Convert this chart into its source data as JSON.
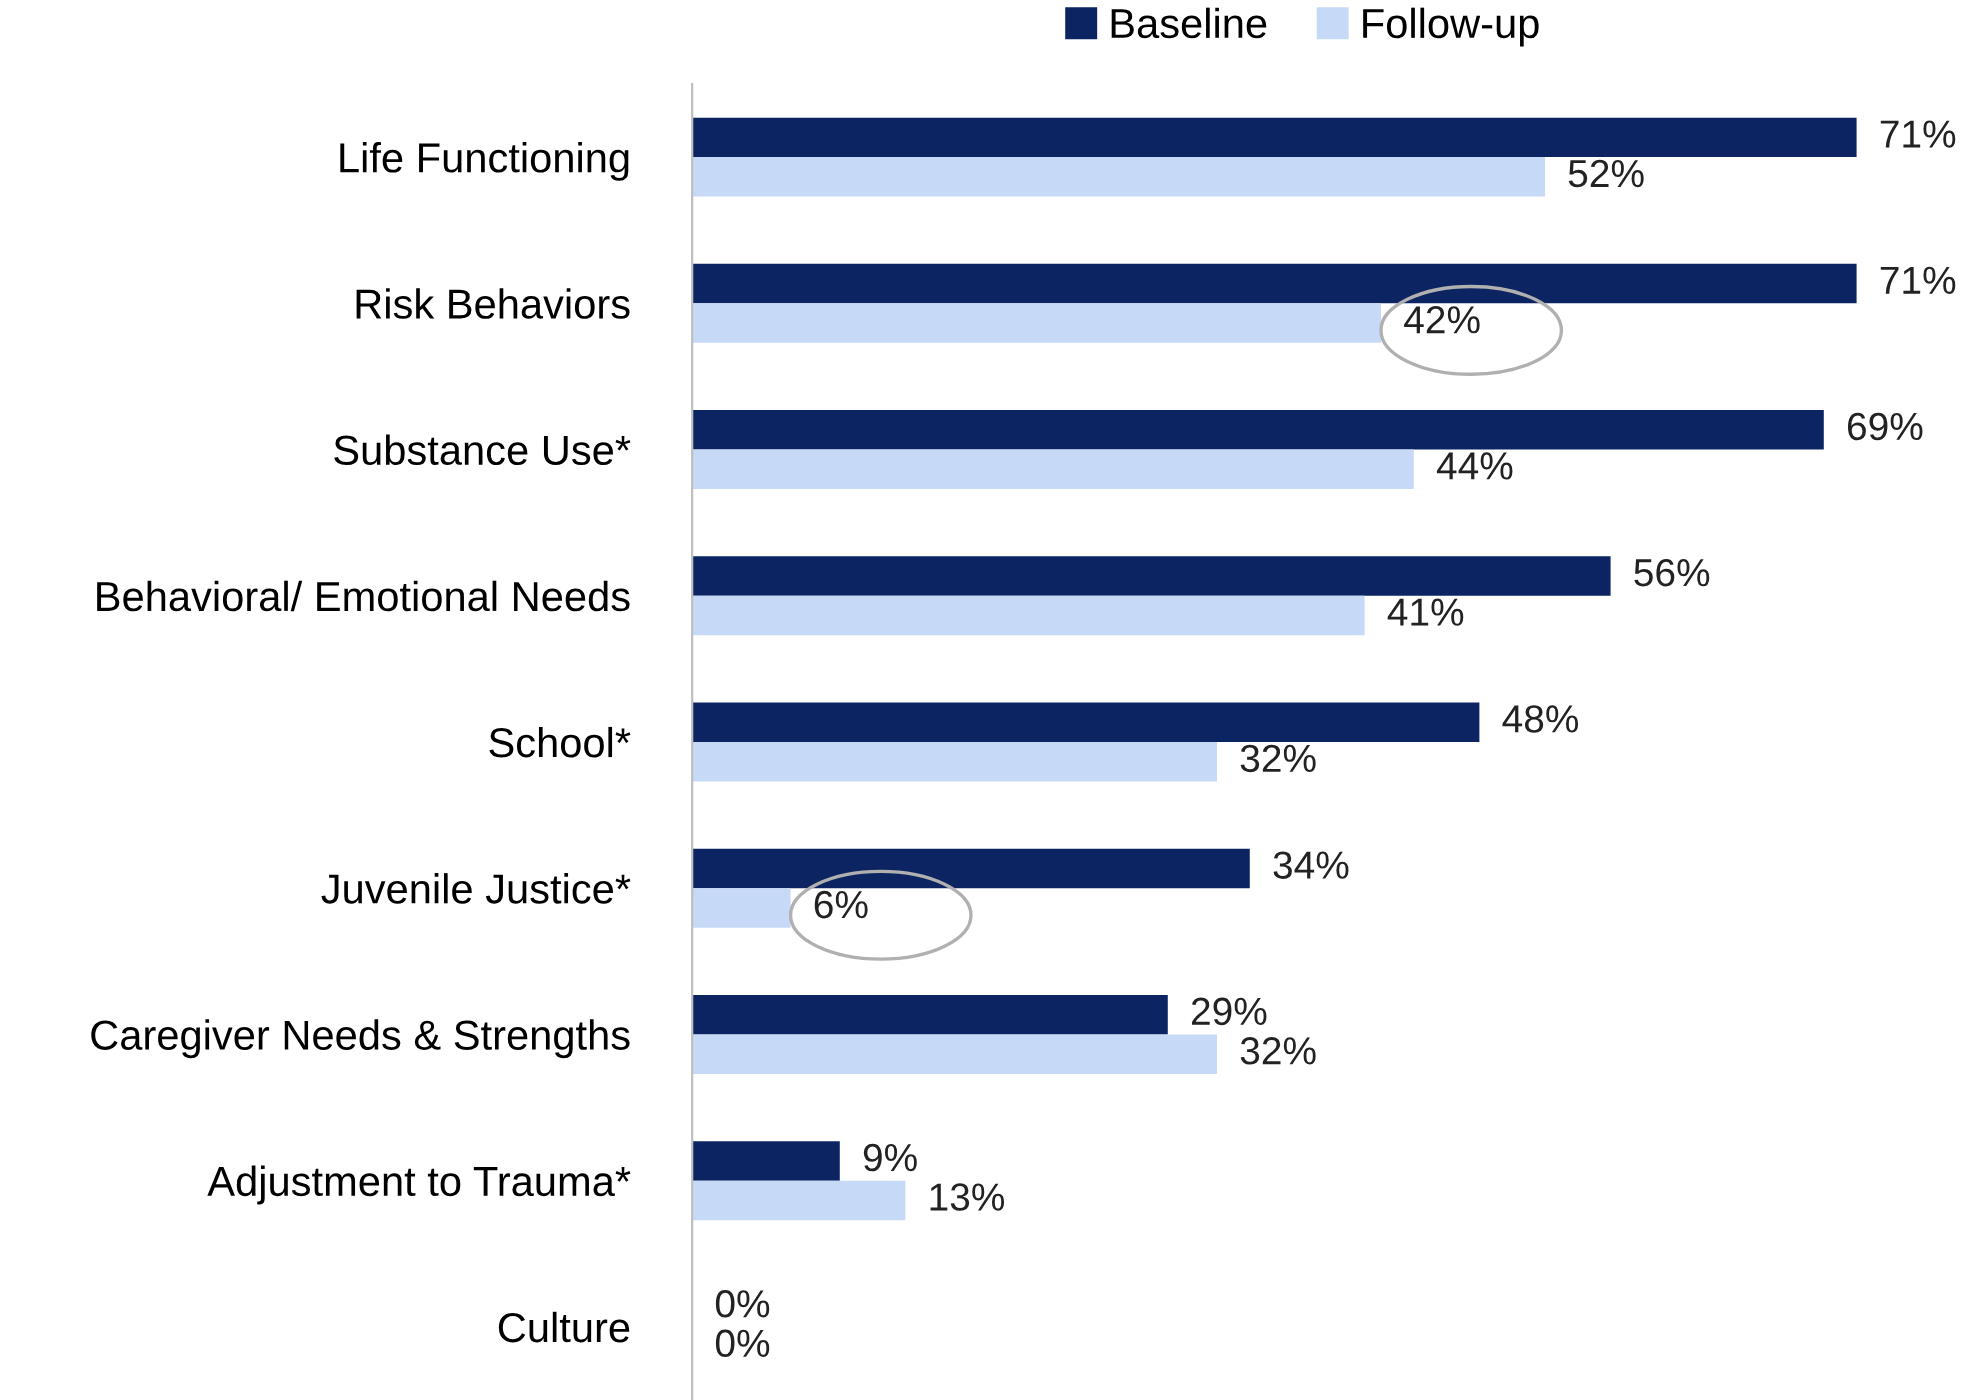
{
  "chart_data": {
    "type": "bar",
    "orientation": "horizontal",
    "categories": [
      "Life Functioning",
      "Risk Behaviors",
      "Substance Use*",
      "Behavioral/ Emotional Needs",
      "School*",
      "Juvenile Justice*",
      "Caregiver Needs & Strengths",
      "Adjustment to Trauma*",
      "Culture"
    ],
    "series": [
      {
        "name": "Baseline",
        "color": "#0c2461",
        "values": [
          71,
          71,
          69,
          56,
          48,
          34,
          29,
          9,
          0
        ],
        "value_labels": [
          "71%",
          "71%",
          "69%",
          "56%",
          "48%",
          "34%",
          "29%",
          "9%",
          "0%"
        ]
      },
      {
        "name": "Follow-up",
        "color": "#c6d9f7",
        "values": [
          52,
          42,
          44,
          41,
          32,
          6,
          32,
          13,
          0
        ],
        "value_labels": [
          "52%",
          "42%",
          "44%",
          "41%",
          "32%",
          "6%",
          "32%",
          "13%",
          "0%"
        ]
      }
    ],
    "legend": "top",
    "grid": false,
    "tick_labels": "y"
  }
}
